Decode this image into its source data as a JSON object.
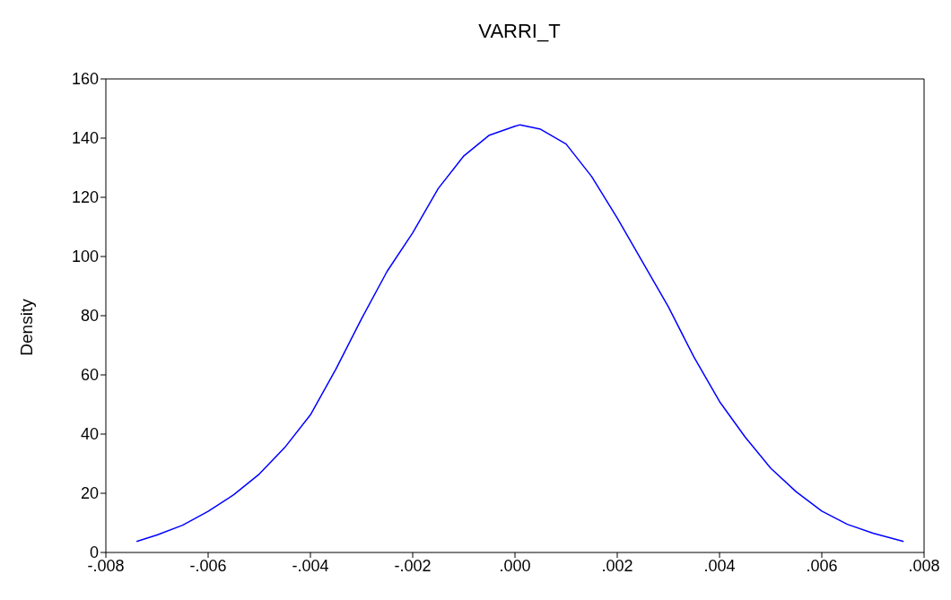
{
  "chart_data": {
    "type": "line",
    "title": "VARRI_T",
    "ylabel": "Density",
    "x": [
      -0.0074,
      -0.007,
      -0.0065,
      -0.006,
      -0.0055,
      -0.005,
      -0.0045,
      -0.004,
      -0.0035,
      -0.003,
      -0.0025,
      -0.002,
      -0.0015,
      -0.001,
      -0.0005,
      0,
      0.0001,
      0.0005,
      0.001,
      0.0015,
      0.002,
      0.0025,
      0.003,
      0.0035,
      0.004,
      0.0045,
      0.005,
      0.0055,
      0.006,
      0.0065,
      0.007,
      0.0076
    ],
    "series": [
      {
        "color": "#0000ff",
        "values": [
          3.7,
          5.9,
          9.2,
          13.9,
          19.5,
          26.5,
          35.5,
          46.5,
          62,
          79,
          95,
          108,
          123,
          134,
          141,
          144,
          144.5,
          143,
          138,
          127,
          113,
          98,
          83,
          66,
          51,
          39,
          28.5,
          20.5,
          14,
          9.5,
          6.5,
          3.7
        ]
      }
    ],
    "xlim": [
      -0.008,
      0.008
    ],
    "xticks": [
      {
        "value": -0.008,
        "label": "-.008"
      },
      {
        "value": -0.006,
        "label": "-.006"
      },
      {
        "value": -0.004,
        "label": "-.004"
      },
      {
        "value": -0.002,
        "label": "-.002"
      },
      {
        "value": 0,
        "label": ".000"
      },
      {
        "value": 0.002,
        "label": ".002"
      },
      {
        "value": 0.004,
        "label": ".004"
      },
      {
        "value": 0.006,
        "label": ".006"
      },
      {
        "value": 0.008,
        "label": ".008"
      }
    ],
    "ylim": [
      0,
      160
    ],
    "yticks": [
      0,
      20,
      40,
      60,
      80,
      100,
      120,
      140,
      160
    ],
    "marker": "none",
    "line_style": "solid"
  }
}
